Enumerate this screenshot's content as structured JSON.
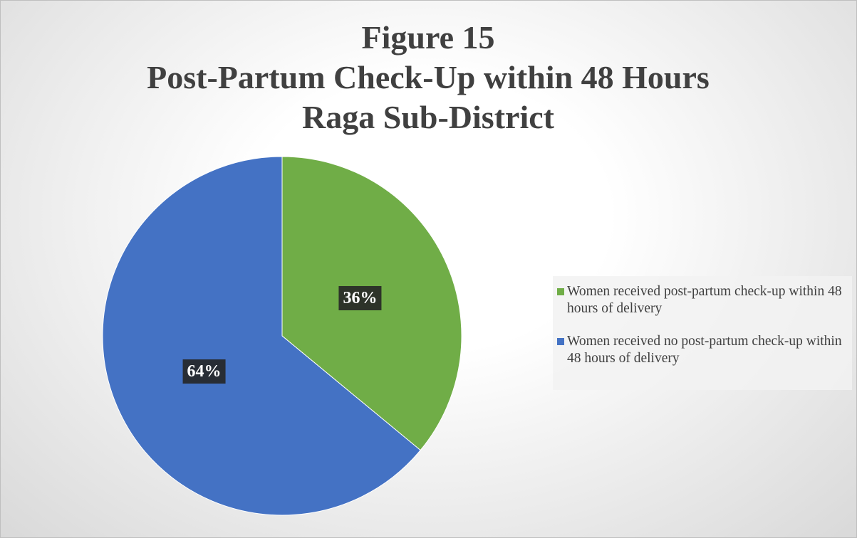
{
  "chart_data": {
    "type": "pie",
    "title": [
      "Figure 15",
      "Post-Partum Check-Up within 48 Hours",
      "Raga Sub-District"
    ],
    "categories": [
      "Women received post-partum check-up within 48 hours of delivery",
      "Women received no post-partum check-up within 48 hours of delivery"
    ],
    "values": [
      36,
      64
    ],
    "value_labels": [
      "36%",
      "64%"
    ],
    "colors": [
      "#70ad47",
      "#4472c4"
    ],
    "legend": "right"
  }
}
